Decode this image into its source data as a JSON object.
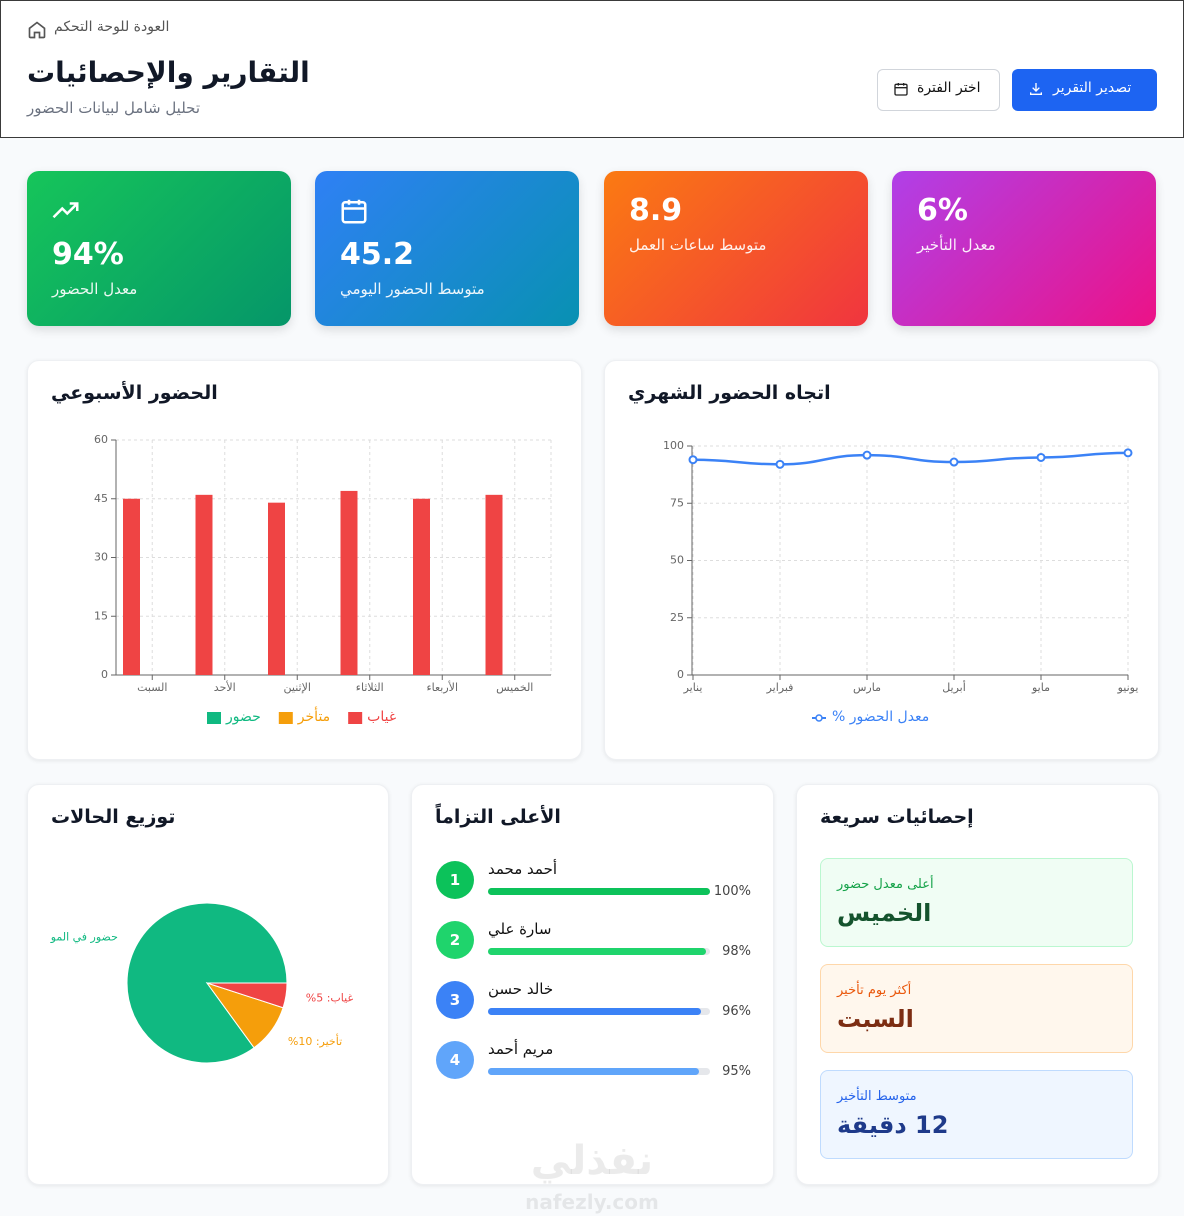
{
  "header": {
    "back_link": "العودة للوحة التحكم",
    "title": "التقارير والإحصائيات",
    "subtitle": "تحليل شامل لبيانات الحضور",
    "buttons": [
      "اختر الفترة",
      "تصدير التقرير"
    ]
  },
  "stats": [
    {
      "value": 94,
      "value_label": "94%",
      "label": "معدل الحضور",
      "gradient": [
        "#16c55a",
        "#059669"
      ]
    },
    {
      "value": 45.2,
      "label": "متوسط الحضور اليومي",
      "gradient": [
        "#2f80f5",
        "#0891b2"
      ]
    },
    {
      "value": 8.9,
      "label": "متوسط ساعات العمل",
      "gradient": [
        "#fb7a12",
        "#f0353f"
      ]
    },
    {
      "value": 6,
      "value_label": "6%",
      "label": "معدل التأخير",
      "gradient": [
        "#b040e8",
        "#ec1287"
      ]
    }
  ],
  "chart_data": [
    {
      "type": "bar",
      "title": "الحضور الأسبوعي",
      "categories": [
        "السبت",
        "الأحد",
        "الإثنين",
        "الثلاثاء",
        "الأربعاء",
        "الخميس"
      ],
      "series": [
        {
          "name": "حضور",
          "color": "#10b981",
          "values": [
            null,
            null,
            null,
            null,
            null,
            null
          ]
        },
        {
          "name": "متأخر",
          "color": "#f59e0b",
          "values": [
            null,
            null,
            null,
            null,
            null,
            null
          ]
        },
        {
          "name": "غياب",
          "color": "#ef4444",
          "values": [
            45,
            46,
            44,
            47,
            45,
            46
          ]
        }
      ],
      "ylim": [
        0,
        60
      ],
      "yticks": [
        0,
        15,
        30,
        45,
        60
      ],
      "grid": true
    },
    {
      "type": "line",
      "title": "اتجاه الحضور الشهري",
      "categories": [
        "يناير",
        "فبراير",
        "مارس",
        "أبريل",
        "مايو",
        "يونيو"
      ],
      "series": [
        {
          "name": "معدل الحضور %",
          "color": "#3b82f6",
          "values": [
            94,
            92,
            96,
            93,
            95,
            97
          ]
        }
      ],
      "ylim": [
        0,
        100
      ],
      "yticks": [
        0,
        25,
        50,
        75,
        100
      ],
      "grid": true
    },
    {
      "type": "pie",
      "title": "توزيع الحالات",
      "values": [
        85,
        10,
        5
      ],
      "labels": [
        "حضور في المو",
        "تأخير: 10%",
        "غياب: 5%"
      ],
      "colors": [
        "#10b981",
        "#f59e0b",
        "#ef4444"
      ]
    }
  ],
  "top_performers": {
    "title": "الأعلى التزاماً",
    "items": [
      {
        "rank": 1,
        "name": "أحمد محمد",
        "value": 100,
        "value_label": "100%",
        "color": "#0cc25a"
      },
      {
        "rank": 2,
        "name": "سارة علي",
        "value": 98,
        "value_label": "98%",
        "color": "#1fd46c"
      },
      {
        "rank": 3,
        "name": "خالد حسن",
        "value": 96,
        "value_label": "96%",
        "color": "#3b82f6"
      },
      {
        "rank": 4,
        "name": "مريم أحمد",
        "value": 95,
        "value_label": "95%",
        "color": "#60a5fa"
      }
    ]
  },
  "quick_stats": {
    "title": "إحصائيات سريعة",
    "items": [
      {
        "label": "أعلى معدل حضور",
        "value": "الخميس"
      },
      {
        "label": "أكثر يوم تأخير",
        "value": "السبت"
      },
      {
        "label": "متوسط التأخير",
        "value": "12 دقيقة"
      }
    ]
  },
  "watermark": [
    "نفذلي",
    "nafezly.com"
  ]
}
